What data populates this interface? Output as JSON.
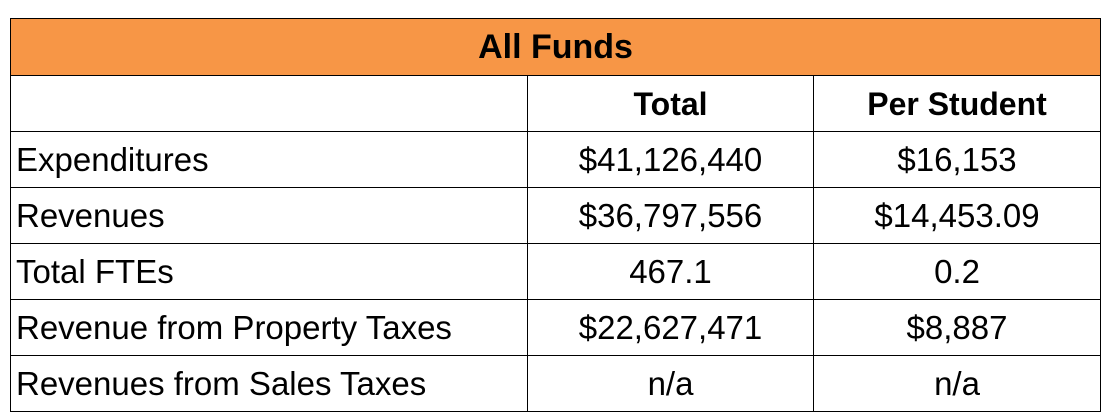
{
  "table": {
    "title": "All Funds",
    "columns": [
      "",
      "Total",
      "Per Student"
    ],
    "rows": [
      {
        "label": "Expenditures",
        "total": "$41,126,440",
        "per_student": "$16,153"
      },
      {
        "label": "Revenues",
        "total": "$36,797,556",
        "per_student": "$14,453.09"
      },
      {
        "label": "Total FTEs",
        "total": "467.1",
        "per_student": "0.2"
      },
      {
        "label": "Revenue from Property Taxes",
        "total": "$22,627,471",
        "per_student": "$8,887"
      },
      {
        "label": "Revenues from Sales Taxes",
        "total": "n/a",
        "per_student": "n/a"
      }
    ]
  },
  "colors": {
    "title_background": "#f79646",
    "border": "#000000"
  }
}
